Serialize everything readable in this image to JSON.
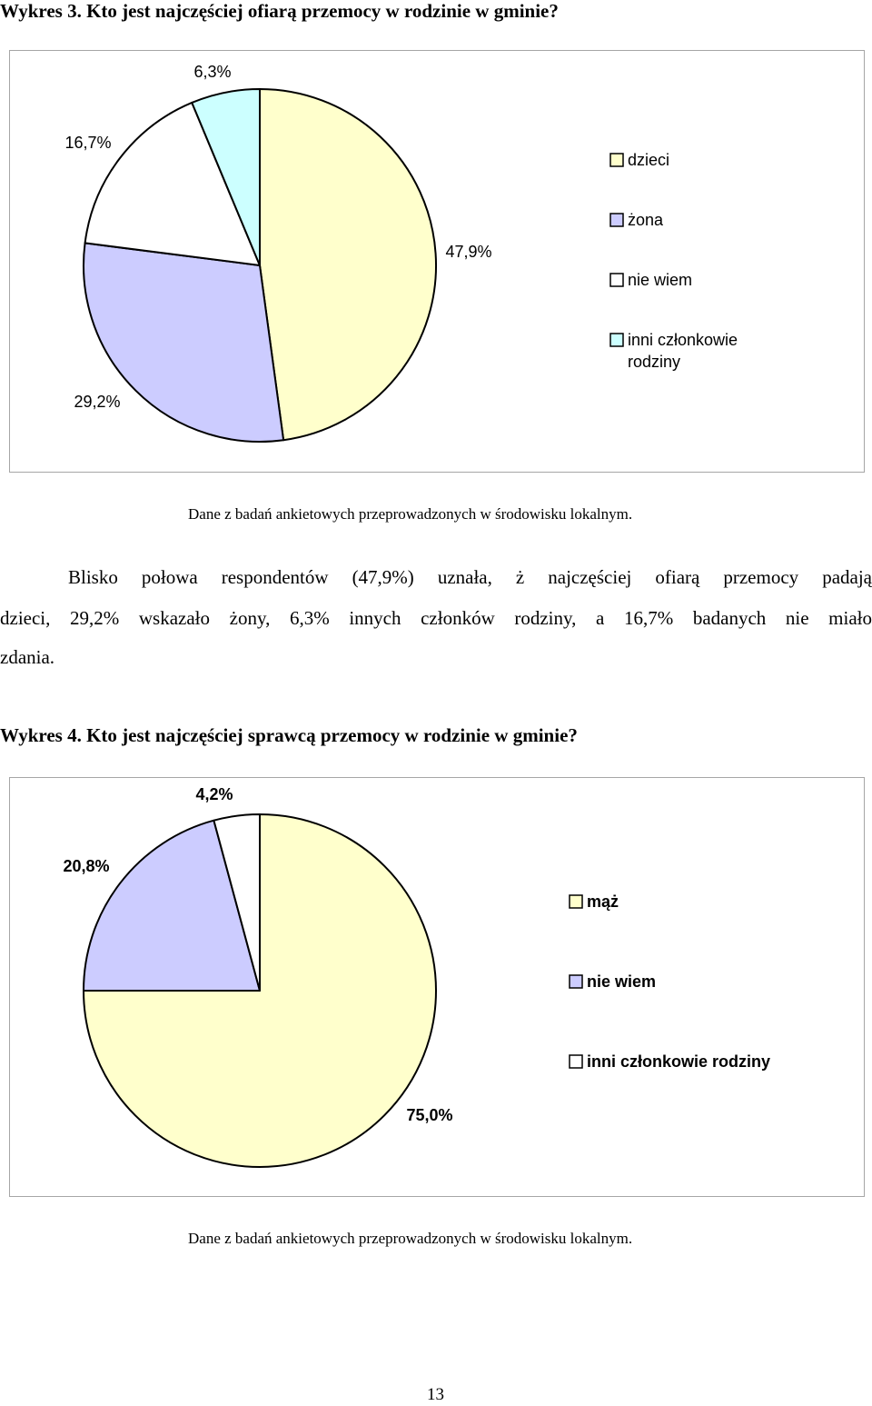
{
  "chart1": {
    "heading": "Wykres 3. Kto jest najczęściej ofiarą przemocy w rodzinie w gminie?",
    "source": "Dane z badań ankietowych przeprowadzonych w środowisku lokalnym."
  },
  "paragraph": {
    "line1": "Blisko połowa respondentów (47,9%) uznała, ż najczęściej ofiarą przemocy padają",
    "line2": "dzieci, 29,2% wskazało żony, 6,3% innych członków rodziny, a 16,7% badanych nie miało",
    "line3": "zdania."
  },
  "chart2": {
    "heading": "Wykres 4. Kto jest najczęściej sprawcą przemocy w rodzinie w gminie?",
    "source": "Dane z badań ankietowych przeprowadzonych w środowisku lokalnym."
  },
  "page_number": "13",
  "chart_data": [
    {
      "type": "pie",
      "title": "Wykres 3. Kto jest najczęściej ofiarą przemocy w rodzinie w gminie?",
      "slices": [
        {
          "label": "dzieci",
          "value": 47.9,
          "text": "47,9%",
          "color": "#ffffcc"
        },
        {
          "label": "żona",
          "value": 29.2,
          "text": "29,2%",
          "color": "#ccccff"
        },
        {
          "label": "nie wiem",
          "value": 16.7,
          "text": "16,7%",
          "color": "#ffffff"
        },
        {
          "label": "inni członkowie rodziny",
          "value": 6.3,
          "text": "6,3%",
          "color": "#ccffff"
        }
      ],
      "legend": [
        [
          "dzieci"
        ],
        [
          "żona"
        ],
        [
          "nie wiem"
        ],
        [
          "inni członkowie",
          "rodziny"
        ]
      ],
      "legend_position": "right"
    },
    {
      "type": "pie",
      "title": "Wykres 4. Kto jest najczęściej sprawcą przemocy w rodzinie w gminie?",
      "slices": [
        {
          "label": "mąż",
          "value": 75.0,
          "text": "75,0%",
          "color": "#ffffcc"
        },
        {
          "label": "nie wiem",
          "value": 20.8,
          "text": "20,8%",
          "color": "#ccccff"
        },
        {
          "label": "inni członkowie rodziny",
          "value": 4.2,
          "text": "4,2%",
          "color": "#ffffff"
        }
      ],
      "legend": [
        [
          "mąż"
        ],
        [
          "nie wiem"
        ],
        [
          "inni członkowie rodziny"
        ]
      ],
      "legend_position": "right",
      "label_style": "bold"
    }
  ]
}
